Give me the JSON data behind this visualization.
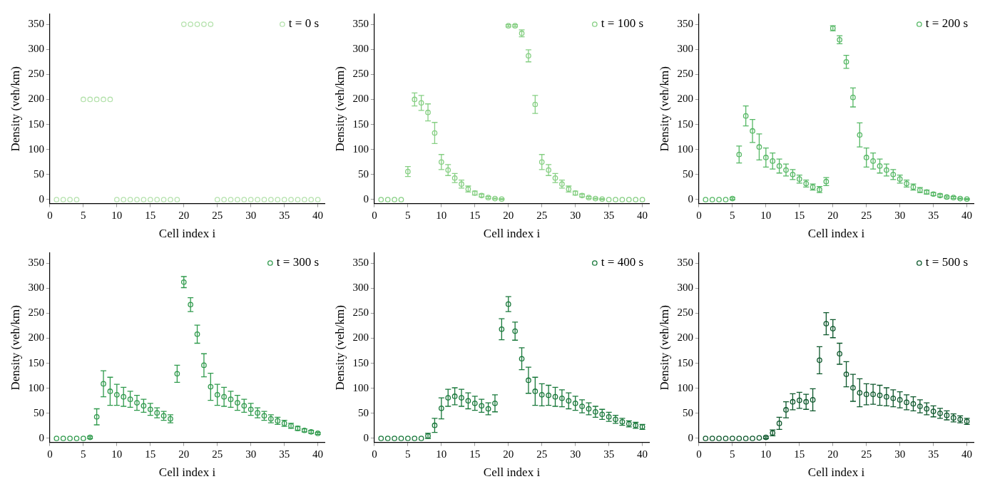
{
  "chart_data": [
    {
      "type": "scatter",
      "xlabel": "Cell index i",
      "ylabel": "Density (veh/km)",
      "x": [
        1,
        2,
        3,
        4,
        5,
        6,
        7,
        8,
        9,
        10,
        11,
        12,
        13,
        14,
        15,
        16,
        17,
        18,
        19,
        20,
        21,
        22,
        23,
        24,
        25,
        26,
        27,
        28,
        29,
        30,
        31,
        32,
        33,
        34,
        35,
        36,
        37,
        38,
        39,
        40
      ],
      "xlim": [
        0,
        41
      ],
      "xticks": [
        0,
        5,
        10,
        15,
        20,
        25,
        30,
        35,
        40
      ],
      "ylim": [
        -8,
        370
      ],
      "yticks": [
        0,
        50,
        100,
        150,
        200,
        250,
        300,
        350
      ],
      "legend": "top right",
      "marker": "circle",
      "series": [
        {
          "name": "t = 0 s",
          "color": "#b5e2ad",
          "values": [
            0,
            0,
            0,
            0,
            200,
            200,
            200,
            200,
            200,
            0,
            0,
            0,
            0,
            0,
            0,
            0,
            0,
            0,
            0,
            350,
            350,
            350,
            350,
            350,
            0,
            0,
            0,
            0,
            0,
            0,
            0,
            0,
            0,
            0,
            0,
            0,
            0,
            0,
            0,
            0
          ]
        }
      ]
    },
    {
      "type": "scatter",
      "xlabel": "Cell index i",
      "ylabel": "Density (veh/km)",
      "x": [
        1,
        2,
        3,
        4,
        5,
        6,
        7,
        8,
        9,
        10,
        11,
        12,
        13,
        14,
        15,
        16,
        17,
        18,
        19,
        20,
        21,
        22,
        23,
        24,
        25,
        26,
        27,
        28,
        29,
        30,
        31,
        32,
        33,
        34,
        35,
        36,
        37,
        38,
        39,
        40
      ],
      "xlim": [
        0,
        41
      ],
      "xticks": [
        0,
        5,
        10,
        15,
        20,
        25,
        30,
        35,
        40
      ],
      "ylim": [
        -8,
        370
      ],
      "yticks": [
        0,
        50,
        100,
        150,
        200,
        250,
        300,
        350
      ],
      "legend": "top right",
      "marker": "circle",
      "series": [
        {
          "name": "t = 100 s",
          "color": "#86cf83",
          "values": [
            0,
            0,
            0,
            0,
            56,
            200,
            193,
            174,
            133,
            75,
            59,
            43,
            31,
            21,
            13,
            8,
            4,
            2,
            1,
            347,
            347,
            332,
            287,
            190,
            75,
            59,
            43,
            31,
            21,
            13,
            8,
            4,
            2,
            1,
            0,
            0,
            0,
            0,
            0,
            0
          ],
          "errors": [
            null,
            null,
            null,
            null,
            10,
            13,
            15,
            17,
            21,
            15,
            11,
            9,
            8,
            6,
            4,
            3,
            2,
            1,
            1,
            2,
            2,
            7,
            12,
            18,
            15,
            11,
            9,
            8,
            6,
            4,
            3,
            2,
            1,
            1,
            null,
            null,
            null,
            null,
            null,
            null
          ]
        }
      ]
    },
    {
      "type": "scatter",
      "xlabel": "Cell index i",
      "ylabel": "Density (veh/km)",
      "x": [
        1,
        2,
        3,
        4,
        5,
        6,
        7,
        8,
        9,
        10,
        11,
        12,
        13,
        14,
        15,
        16,
        17,
        18,
        19,
        20,
        21,
        22,
        23,
        24,
        25,
        26,
        27,
        28,
        29,
        30,
        31,
        32,
        33,
        34,
        35,
        36,
        37,
        38,
        39,
        40
      ],
      "xlim": [
        0,
        41
      ],
      "xticks": [
        0,
        5,
        10,
        15,
        20,
        25,
        30,
        35,
        40
      ],
      "ylim": [
        -8,
        370
      ],
      "yticks": [
        0,
        50,
        100,
        150,
        200,
        250,
        300,
        350
      ],
      "legend": "top right",
      "marker": "circle",
      "series": [
        {
          "name": "t = 200 s",
          "color": "#56b865",
          "values": [
            0,
            0,
            0,
            0,
            2,
            90,
            167,
            137,
            105,
            84,
            77,
            67,
            59,
            50,
            41,
            32,
            25,
            20,
            36,
            342,
            319,
            275,
            204,
            129,
            84,
            77,
            67,
            59,
            50,
            41,
            32,
            25,
            19,
            15,
            11,
            8,
            5,
            4,
            2,
            1
          ],
          "errors": [
            null,
            null,
            null,
            null,
            2,
            17,
            20,
            23,
            26,
            19,
            16,
            14,
            12,
            10,
            8,
            7,
            6,
            6,
            8,
            5,
            8,
            13,
            19,
            24,
            19,
            16,
            14,
            12,
            10,
            8,
            7,
            6,
            5,
            4,
            3,
            3,
            2,
            2,
            1,
            1
          ]
        }
      ]
    },
    {
      "type": "scatter",
      "xlabel": "Cell index i",
      "ylabel": "Density (veh/km)",
      "x": [
        1,
        2,
        3,
        4,
        5,
        6,
        7,
        8,
        9,
        10,
        11,
        12,
        13,
        14,
        15,
        16,
        17,
        18,
        19,
        20,
        21,
        22,
        23,
        24,
        25,
        26,
        27,
        28,
        29,
        30,
        31,
        32,
        33,
        34,
        35,
        36,
        37,
        38,
        39,
        40
      ],
      "xlim": [
        0,
        41
      ],
      "xticks": [
        0,
        5,
        10,
        15,
        20,
        25,
        30,
        35,
        40
      ],
      "ylim": [
        -8,
        370
      ],
      "yticks": [
        0,
        50,
        100,
        150,
        200,
        250,
        300,
        350
      ],
      "legend": "top right",
      "marker": "circle",
      "series": [
        {
          "name": "t = 300 s",
          "color": "#2f9a4c",
          "values": [
            0,
            0,
            0,
            0,
            0,
            2,
            43,
            109,
            94,
            87,
            83,
            78,
            71,
            65,
            58,
            51,
            45,
            39,
            129,
            312,
            267,
            208,
            146,
            103,
            87,
            83,
            78,
            71,
            65,
            58,
            51,
            45,
            39,
            35,
            30,
            25,
            20,
            16,
            13,
            10
          ],
          "errors": [
            null,
            null,
            null,
            null,
            null,
            2,
            16,
            26,
            28,
            21,
            19,
            16,
            15,
            13,
            12,
            10,
            9,
            8,
            17,
            11,
            14,
            18,
            23,
            27,
            21,
            19,
            16,
            15,
            13,
            12,
            10,
            9,
            8,
            7,
            6,
            5,
            4,
            3,
            3,
            2
          ]
        }
      ]
    },
    {
      "type": "scatter",
      "xlabel": "Cell index i",
      "ylabel": "Density (veh/km)",
      "x": [
        1,
        2,
        3,
        4,
        5,
        6,
        7,
        8,
        9,
        10,
        11,
        12,
        13,
        14,
        15,
        16,
        17,
        18,
        19,
        20,
        21,
        22,
        23,
        24,
        25,
        26,
        27,
        28,
        29,
        30,
        31,
        32,
        33,
        34,
        35,
        36,
        37,
        38,
        39,
        40
      ],
      "xlim": [
        0,
        41
      ],
      "xticks": [
        0,
        5,
        10,
        15,
        20,
        25,
        30,
        35,
        40
      ],
      "ylim": [
        -8,
        370
      ],
      "yticks": [
        0,
        50,
        100,
        150,
        200,
        250,
        300,
        350
      ],
      "legend": "top right",
      "marker": "circle",
      "series": [
        {
          "name": "t = 400 s",
          "color": "#18783a",
          "values": [
            0,
            0,
            0,
            0,
            0,
            0,
            0,
            5,
            26,
            60,
            81,
            84,
            81,
            75,
            70,
            65,
            59,
            70,
            218,
            268,
            214,
            159,
            116,
            94,
            87,
            86,
            83,
            80,
            75,
            70,
            64,
            59,
            53,
            48,
            43,
            38,
            33,
            29,
            26,
            23
          ],
          "errors": [
            null,
            null,
            null,
            null,
            null,
            null,
            null,
            5,
            14,
            21,
            17,
            17,
            17,
            16,
            14,
            13,
            12,
            17,
            21,
            15,
            18,
            22,
            26,
            28,
            22,
            20,
            19,
            17,
            16,
            14,
            13,
            12,
            11,
            10,
            9,
            8,
            7,
            6,
            6,
            5
          ]
        }
      ]
    },
    {
      "type": "scatter",
      "xlabel": "Cell index i",
      "ylabel": "Density (veh/km)",
      "x": [
        1,
        2,
        3,
        4,
        5,
        6,
        7,
        8,
        9,
        10,
        11,
        12,
        13,
        14,
        15,
        16,
        17,
        18,
        19,
        20,
        21,
        22,
        23,
        24,
        25,
        26,
        27,
        28,
        29,
        30,
        31,
        32,
        33,
        34,
        35,
        36,
        37,
        38,
        39,
        40
      ],
      "xlim": [
        0,
        41
      ],
      "xticks": [
        0,
        5,
        10,
        15,
        20,
        25,
        30,
        35,
        40
      ],
      "ylim": [
        -8,
        370
      ],
      "yticks": [
        0,
        50,
        100,
        150,
        200,
        250,
        300,
        350
      ],
      "legend": "top right",
      "marker": "circle",
      "series": [
        {
          "name": "t = 500 s",
          "color": "#0c572b",
          "values": [
            0,
            0,
            0,
            0,
            0,
            0,
            0,
            0,
            1,
            2,
            11,
            30,
            57,
            73,
            76,
            73,
            77,
            156,
            229,
            219,
            169,
            128,
            101,
            91,
            88,
            88,
            86,
            83,
            80,
            77,
            72,
            69,
            64,
            59,
            54,
            50,
            46,
            41,
            38,
            34
          ],
          "errors": [
            null,
            null,
            null,
            null,
            null,
            null,
            null,
            null,
            null,
            2,
            6,
            12,
            16,
            16,
            16,
            15,
            22,
            27,
            22,
            18,
            21,
            25,
            27,
            28,
            21,
            20,
            20,
            18,
            17,
            16,
            15,
            14,
            13,
            12,
            11,
            10,
            9,
            8,
            7,
            6
          ]
        }
      ]
    }
  ]
}
